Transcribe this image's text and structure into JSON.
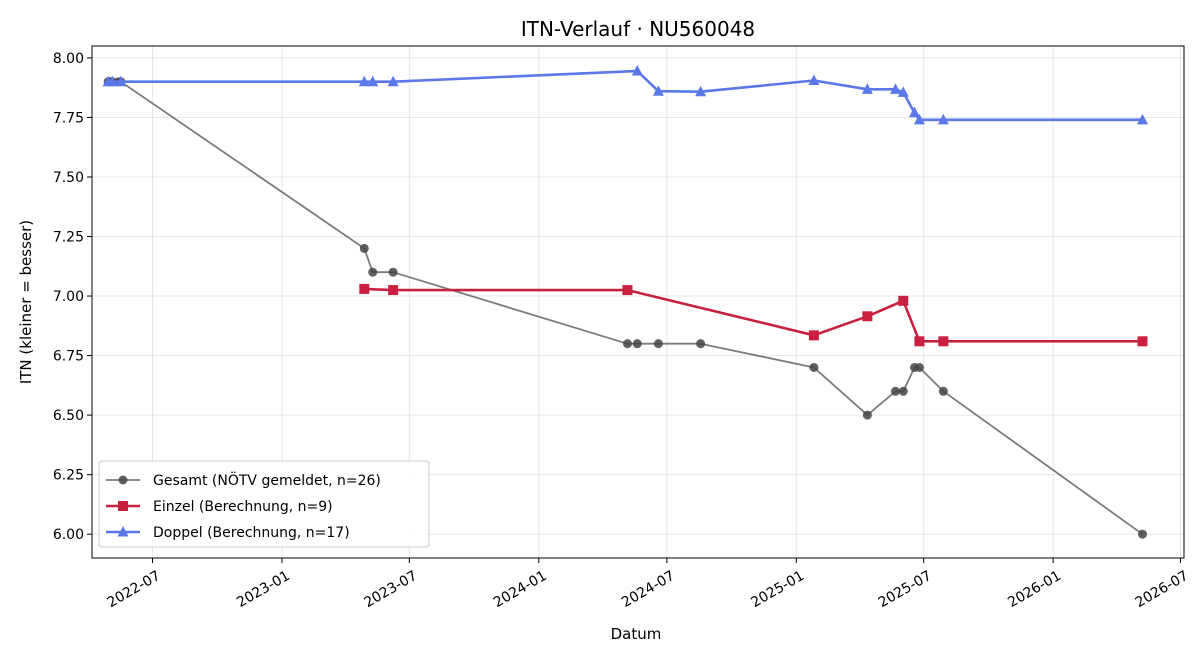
{
  "chart_data": {
    "type": "line",
    "title": "ITN-Verlauf · NU560048",
    "xlabel": "Datum",
    "ylabel": "ITN  (kleiner = besser)",
    "x_axis_type": "date",
    "xlim": [
      "2022-04-06",
      "2026-07-06"
    ],
    "ylim": [
      5.9,
      8.05
    ],
    "x_ticks": [
      "2022-07-01",
      "2023-01-01",
      "2023-07-01",
      "2024-01-01",
      "2024-07-01",
      "2025-01-01",
      "2025-07-01",
      "2026-01-01",
      "2026-07-01"
    ],
    "x_tick_labels": [
      "2022-07",
      "2023-01",
      "2023-07",
      "2024-01",
      "2024-07",
      "2025-01",
      "2025-07",
      "2026-01",
      "2026-07"
    ],
    "y_ticks": [
      6.0,
      6.25,
      6.5,
      6.75,
      7.0,
      7.25,
      7.5,
      7.75,
      8.0
    ],
    "y_tick_labels": [
      "6.00",
      "6.25",
      "6.50",
      "6.75",
      "7.00",
      "7.25",
      "7.50",
      "7.75",
      "8.00"
    ],
    "grid": true,
    "legend_position": "lower-left",
    "series": [
      {
        "name": "Gesamt (NÖTV gemeldet, n=26)",
        "color": "#444444",
        "marker": "circle",
        "points": [
          {
            "x": "2022-04-29",
            "y": 7.9
          },
          {
            "x": "2022-05-01",
            "y": 7.9
          },
          {
            "x": "2022-05-03",
            "y": 7.9
          },
          {
            "x": "2022-05-05",
            "y": 7.9
          },
          {
            "x": "2022-05-14",
            "y": 7.9
          },
          {
            "x": "2022-05-17",
            "y": 7.9
          },
          {
            "x": "2023-04-28",
            "y": 7.2
          },
          {
            "x": "2023-05-10",
            "y": 7.1
          },
          {
            "x": "2023-06-08",
            "y": 7.1
          },
          {
            "x": "2024-05-06",
            "y": 6.8
          },
          {
            "x": "2024-05-20",
            "y": 6.8
          },
          {
            "x": "2024-06-19",
            "y": 6.8
          },
          {
            "x": "2024-08-18",
            "y": 6.8
          },
          {
            "x": "2025-01-26",
            "y": 6.7
          },
          {
            "x": "2025-04-12",
            "y": 6.5
          },
          {
            "x": "2025-05-22",
            "y": 6.6
          },
          {
            "x": "2025-06-02",
            "y": 6.6
          },
          {
            "x": "2025-06-18",
            "y": 6.7
          },
          {
            "x": "2025-06-25",
            "y": 6.7
          },
          {
            "x": "2025-07-29",
            "y": 6.6
          },
          {
            "x": "2026-05-08",
            "y": 6.0
          }
        ]
      },
      {
        "name": "Einzel (Berechnung, n=9)",
        "color": "#c9203f",
        "marker": "square",
        "points": [
          {
            "x": "2023-04-28",
            "y": 7.03
          },
          {
            "x": "2023-06-08",
            "y": 7.025
          },
          {
            "x": "2024-05-06",
            "y": 7.025
          },
          {
            "x": "2025-01-26",
            "y": 6.835
          },
          {
            "x": "2025-04-12",
            "y": 6.915
          },
          {
            "x": "2025-06-02",
            "y": 6.98
          },
          {
            "x": "2025-06-25",
            "y": 6.81
          },
          {
            "x": "2025-07-29",
            "y": 6.81
          },
          {
            "x": "2026-05-08",
            "y": 6.81
          }
        ]
      },
      {
        "name": "Doppel (Berechnung, n=17)",
        "color": "#5a78e8",
        "marker": "triangle",
        "points": [
          {
            "x": "2022-04-29",
            "y": 7.9
          },
          {
            "x": "2022-05-05",
            "y": 7.9
          },
          {
            "x": "2022-05-17",
            "y": 7.9
          },
          {
            "x": "2023-04-28",
            "y": 7.9
          },
          {
            "x": "2023-05-10",
            "y": 7.9
          },
          {
            "x": "2023-06-08",
            "y": 7.9
          },
          {
            "x": "2024-05-20",
            "y": 7.945
          },
          {
            "x": "2024-06-19",
            "y": 7.86
          },
          {
            "x": "2024-08-18",
            "y": 7.858
          },
          {
            "x": "2025-01-26",
            "y": 7.905
          },
          {
            "x": "2025-04-12",
            "y": 7.868
          },
          {
            "x": "2025-05-22",
            "y": 7.868
          },
          {
            "x": "2025-06-02",
            "y": 7.855
          },
          {
            "x": "2025-06-18",
            "y": 7.77
          },
          {
            "x": "2025-06-25",
            "y": 7.74
          },
          {
            "x": "2025-07-29",
            "y": 7.74
          },
          {
            "x": "2026-05-08",
            "y": 7.74
          }
        ]
      }
    ]
  }
}
